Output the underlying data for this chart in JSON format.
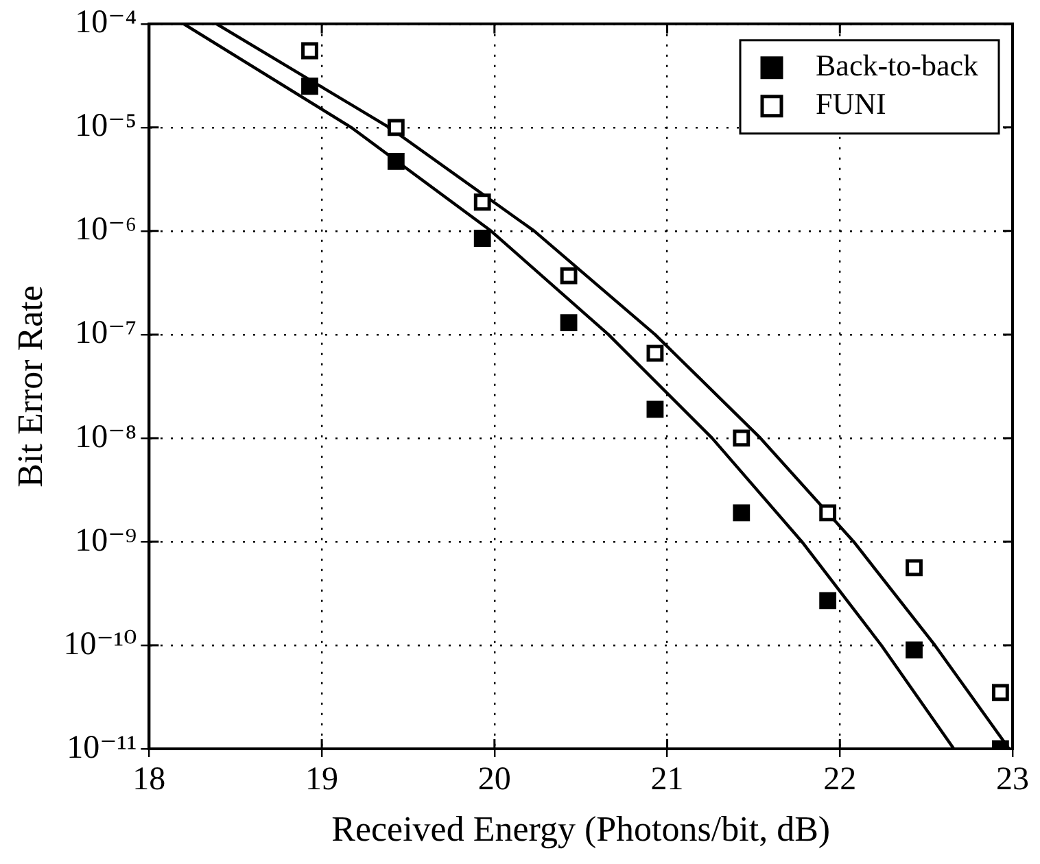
{
  "chart_data": {
    "type": "scatter",
    "xlabel": "Received Energy (Photons/bit, dB)",
    "ylabel": "Bit Error Rate",
    "xlim": [
      18,
      23
    ],
    "xticks": [
      18,
      19,
      20,
      21,
      22,
      23
    ],
    "ylim": [
      1e-11,
      0.0001
    ],
    "log": "y",
    "yticks": [
      {
        "value": 1e-11,
        "label": "10⁻¹¹"
      },
      {
        "value": 1e-10,
        "label": "10⁻¹⁰"
      },
      {
        "value": 1e-09,
        "label": "10⁻⁹"
      },
      {
        "value": 1e-08,
        "label": "10⁻⁸"
      },
      {
        "value": 1e-07,
        "label": "10⁻⁷"
      },
      {
        "value": 1e-06,
        "label": "10⁻⁶"
      },
      {
        "value": 1e-05,
        "label": "10⁻⁵"
      },
      {
        "value": 0.0001,
        "label": "10⁻⁴"
      }
    ],
    "grid": true,
    "legend": "top right",
    "marker": "square",
    "series": [
      {
        "name": "Back-to-back",
        "color": "#000000",
        "x": [
          18.93,
          19.43,
          19.93,
          20.43,
          20.93,
          21.43,
          21.93,
          22.43,
          22.93
        ],
        "values": [
          2.5e-05,
          4.7e-06,
          8.5e-07,
          1.3e-07,
          1.9e-08,
          1.9e-09,
          2.7e-10,
          9e-11,
          1e-11
        ]
      },
      {
        "name": "FUNI",
        "color": "#000000",
        "x": [
          18.93,
          19.43,
          19.93,
          20.43,
          20.93,
          21.43,
          21.93,
          22.43,
          22.93
        ],
        "values": [
          5.5e-05,
          1e-05,
          1.9e-06,
          3.7e-07,
          6.6e-08,
          1e-08,
          1.9e-09,
          5.6e-10,
          3.5e-11
        ]
      },
      {
        "color": "#000000",
        "type": "line",
        "marker": "none",
        "line_style": "solid",
        "x": [
          18.2,
          19.17,
          19.98,
          20.66,
          21.26,
          21.78,
          22.24,
          22.66
        ],
        "values": [
          0.0001,
          1e-05,
          1e-06,
          1e-07,
          1e-08,
          1e-09,
          1e-10,
          1e-11
        ]
      },
      {
        "color": "#000000",
        "type": "line",
        "marker": "none",
        "line_style": "solid",
        "x": [
          18.39,
          19.39,
          20.23,
          20.93,
          21.54,
          22.08,
          22.55,
          22.98
        ],
        "values": [
          0.0001,
          1e-05,
          1e-06,
          1e-07,
          1e-08,
          1e-09,
          1e-10,
          1e-11
        ]
      }
    ]
  }
}
